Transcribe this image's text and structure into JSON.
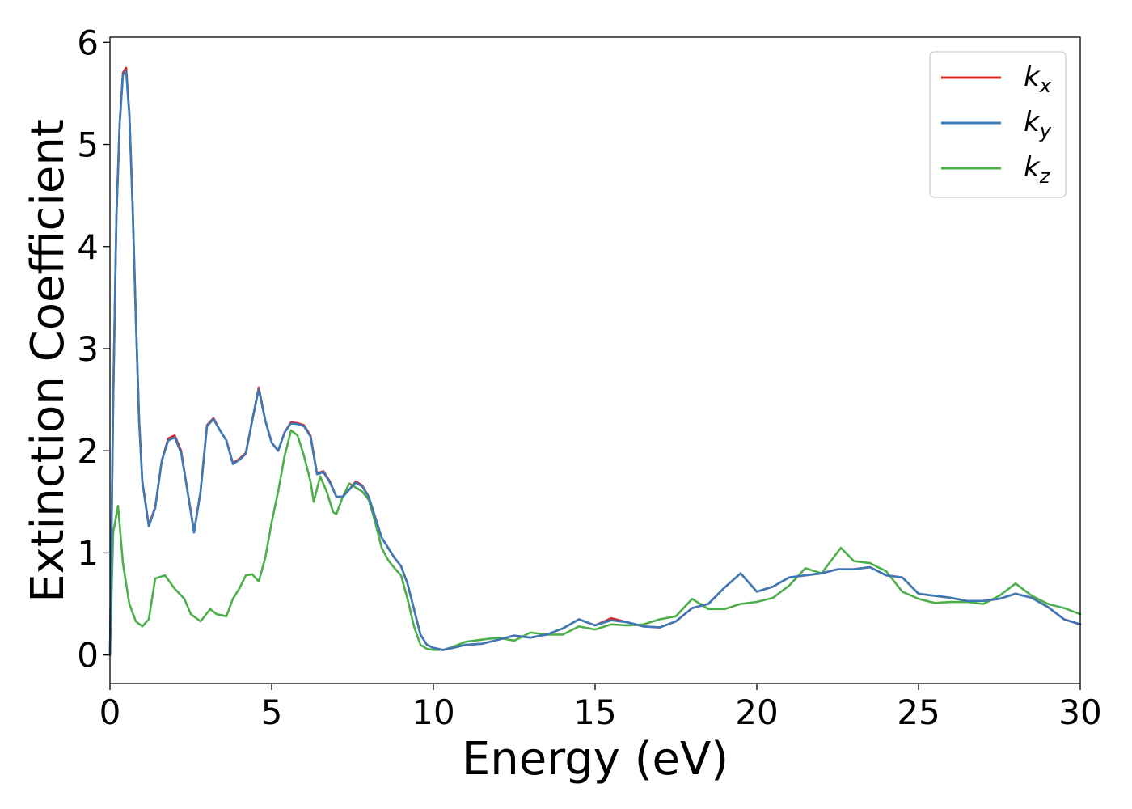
{
  "chart_data": {
    "type": "line",
    "xlabel": "Energy (eV)",
    "ylabel": "Extinction Coefficient",
    "xlim": [
      0,
      30
    ],
    "ylim": [
      -0.28,
      6.05
    ],
    "xticks": [
      0,
      5,
      10,
      15,
      20,
      25,
      30
    ],
    "yticks": [
      0,
      1,
      2,
      3,
      4,
      5,
      6
    ],
    "grid": false,
    "legend_position": "top-right",
    "series": [
      {
        "name": "k_x",
        "label_main": "k",
        "label_sub": "x",
        "color": "#d62728",
        "x": [
          0,
          0.1,
          0.2,
          0.3,
          0.4,
          0.5,
          0.6,
          0.7,
          0.8,
          0.9,
          1.0,
          1.2,
          1.4,
          1.6,
          1.8,
          2.0,
          2.2,
          2.4,
          2.6,
          2.8,
          3.0,
          3.2,
          3.4,
          3.6,
          3.8,
          4.0,
          4.2,
          4.4,
          4.6,
          4.8,
          5.0,
          5.2,
          5.4,
          5.6,
          5.8,
          6.0,
          6.2,
          6.4,
          6.6,
          6.8,
          7.0,
          7.2,
          7.4,
          7.6,
          7.8,
          8.0,
          8.2,
          8.4,
          8.6,
          8.8,
          9.0,
          9.2,
          9.4,
          9.6,
          9.8,
          10.0,
          10.3,
          10.6,
          11.0,
          11.5,
          12.0,
          12.5,
          13.0,
          13.5,
          14.0,
          14.5,
          15.0,
          15.5,
          16.0,
          16.5,
          17.0,
          17.5,
          18.0,
          18.5,
          19.0,
          19.5,
          20.0,
          20.5,
          21.0,
          21.5,
          22.0,
          22.5,
          23.0,
          23.5,
          24.0,
          24.5,
          25.0,
          25.5,
          26.0,
          26.5,
          27.0,
          27.5,
          28.0,
          28.5,
          29.0,
          29.5,
          30.0
        ],
        "y": [
          0.0,
          2.5,
          4.3,
          5.2,
          5.7,
          5.75,
          5.3,
          4.4,
          3.3,
          2.3,
          1.7,
          1.27,
          1.45,
          1.9,
          2.12,
          2.15,
          2.0,
          1.6,
          1.21,
          1.6,
          2.25,
          2.32,
          2.2,
          2.1,
          1.88,
          1.92,
          1.98,
          2.3,
          2.62,
          2.3,
          2.08,
          2.0,
          2.18,
          2.28,
          2.27,
          2.25,
          2.15,
          1.78,
          1.8,
          1.7,
          1.55,
          1.55,
          1.62,
          1.7,
          1.66,
          1.55,
          1.35,
          1.15,
          1.05,
          0.95,
          0.87,
          0.7,
          0.45,
          0.2,
          0.1,
          0.07,
          0.05,
          0.07,
          0.1,
          0.11,
          0.15,
          0.19,
          0.17,
          0.2,
          0.26,
          0.35,
          0.29,
          0.36,
          0.32,
          0.28,
          0.27,
          0.33,
          0.46,
          0.5,
          0.66,
          0.8,
          0.62,
          0.67,
          0.76,
          0.78,
          0.8,
          0.84,
          0.84,
          0.86,
          0.78,
          0.76,
          0.6,
          0.58,
          0.56,
          0.53,
          0.53,
          0.55,
          0.6,
          0.56,
          0.47,
          0.35,
          0.3
        ]
      },
      {
        "name": "k_y",
        "label_main": "k",
        "label_sub": "y",
        "color": "#3a7ab8",
        "x": [
          0,
          0.1,
          0.2,
          0.3,
          0.4,
          0.5,
          0.6,
          0.7,
          0.8,
          0.9,
          1.0,
          1.2,
          1.4,
          1.6,
          1.8,
          2.0,
          2.2,
          2.4,
          2.6,
          2.8,
          3.0,
          3.2,
          3.4,
          3.6,
          3.8,
          4.0,
          4.2,
          4.4,
          4.6,
          4.8,
          5.0,
          5.2,
          5.4,
          5.6,
          5.8,
          6.0,
          6.2,
          6.4,
          6.6,
          6.8,
          7.0,
          7.2,
          7.4,
          7.6,
          7.8,
          8.0,
          8.2,
          8.4,
          8.6,
          8.8,
          9.0,
          9.2,
          9.4,
          9.6,
          9.8,
          10.0,
          10.3,
          10.6,
          11.0,
          11.5,
          12.0,
          12.5,
          13.0,
          13.5,
          14.0,
          14.5,
          15.0,
          15.5,
          16.0,
          16.5,
          17.0,
          17.5,
          18.0,
          18.5,
          19.0,
          19.5,
          20.0,
          20.5,
          21.0,
          21.5,
          22.0,
          22.5,
          23.0,
          23.5,
          24.0,
          24.5,
          25.0,
          25.5,
          26.0,
          26.5,
          27.0,
          27.5,
          28.0,
          28.5,
          29.0,
          29.5,
          30.0
        ],
        "y": [
          0.0,
          2.5,
          4.3,
          5.2,
          5.68,
          5.72,
          5.28,
          4.4,
          3.3,
          2.3,
          1.7,
          1.26,
          1.44,
          1.9,
          2.1,
          2.13,
          1.98,
          1.6,
          1.2,
          1.6,
          2.24,
          2.31,
          2.2,
          2.1,
          1.87,
          1.91,
          1.97,
          2.3,
          2.6,
          2.3,
          2.08,
          2.0,
          2.18,
          2.27,
          2.26,
          2.24,
          2.14,
          1.77,
          1.79,
          1.69,
          1.55,
          1.55,
          1.62,
          1.69,
          1.65,
          1.55,
          1.35,
          1.15,
          1.05,
          0.95,
          0.87,
          0.7,
          0.45,
          0.2,
          0.1,
          0.07,
          0.05,
          0.07,
          0.1,
          0.11,
          0.15,
          0.19,
          0.17,
          0.2,
          0.26,
          0.35,
          0.29,
          0.34,
          0.32,
          0.28,
          0.27,
          0.33,
          0.46,
          0.5,
          0.66,
          0.8,
          0.62,
          0.67,
          0.76,
          0.78,
          0.8,
          0.84,
          0.84,
          0.86,
          0.78,
          0.76,
          0.6,
          0.58,
          0.56,
          0.53,
          0.53,
          0.55,
          0.6,
          0.56,
          0.47,
          0.35,
          0.3
        ]
      },
      {
        "name": "k_z",
        "label_main": "k",
        "label_sub": "z",
        "color": "#4daf4a",
        "x": [
          0,
          0.1,
          0.25,
          0.4,
          0.6,
          0.8,
          1.0,
          1.2,
          1.4,
          1.7,
          2.0,
          2.3,
          2.5,
          2.8,
          3.1,
          3.3,
          3.6,
          3.8,
          4.0,
          4.2,
          4.4,
          4.6,
          4.8,
          5.0,
          5.2,
          5.4,
          5.6,
          5.8,
          6.0,
          6.2,
          6.3,
          6.5,
          6.7,
          6.9,
          7.0,
          7.2,
          7.4,
          7.6,
          7.8,
          8.0,
          8.2,
          8.4,
          8.6,
          8.8,
          9.0,
          9.2,
          9.4,
          9.6,
          9.8,
          10.0,
          10.3,
          10.6,
          11.0,
          11.5,
          12.0,
          12.5,
          13.0,
          13.5,
          14.0,
          14.5,
          15.0,
          15.5,
          16.0,
          16.5,
          17.0,
          17.5,
          18.0,
          18.5,
          19.0,
          19.5,
          20.0,
          20.5,
          21.0,
          21.5,
          22.0,
          22.6,
          23.0,
          23.5,
          24.0,
          24.5,
          25.0,
          25.5,
          26.0,
          26.5,
          27.0,
          27.5,
          28.0,
          28.5,
          29.0,
          29.5,
          30.0
        ],
        "y": [
          0.0,
          1.2,
          1.46,
          0.9,
          0.5,
          0.33,
          0.28,
          0.35,
          0.75,
          0.78,
          0.65,
          0.55,
          0.4,
          0.33,
          0.45,
          0.4,
          0.38,
          0.55,
          0.65,
          0.78,
          0.79,
          0.72,
          0.95,
          1.3,
          1.6,
          1.95,
          2.2,
          2.15,
          1.95,
          1.7,
          1.5,
          1.75,
          1.6,
          1.4,
          1.38,
          1.55,
          1.68,
          1.64,
          1.6,
          1.52,
          1.3,
          1.05,
          0.93,
          0.85,
          0.78,
          0.55,
          0.28,
          0.1,
          0.06,
          0.05,
          0.05,
          0.08,
          0.13,
          0.15,
          0.17,
          0.14,
          0.22,
          0.2,
          0.2,
          0.28,
          0.25,
          0.3,
          0.29,
          0.3,
          0.35,
          0.38,
          0.55,
          0.45,
          0.45,
          0.5,
          0.52,
          0.56,
          0.68,
          0.85,
          0.8,
          1.05,
          0.92,
          0.9,
          0.82,
          0.62,
          0.55,
          0.51,
          0.52,
          0.52,
          0.5,
          0.58,
          0.7,
          0.58,
          0.5,
          0.46,
          0.4
        ]
      }
    ]
  }
}
